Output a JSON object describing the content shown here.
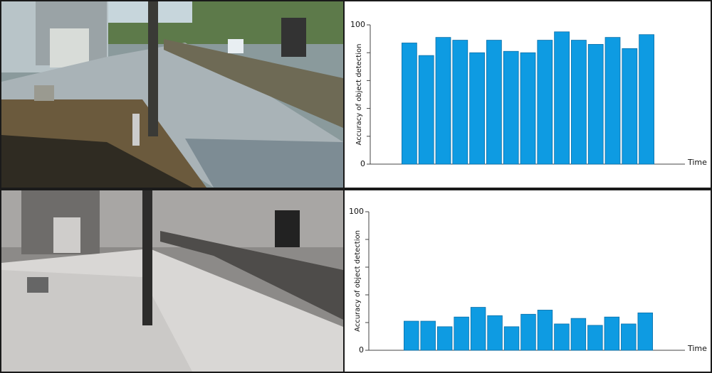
{
  "chart_data": [
    {
      "type": "bar",
      "y_label": "Accuracy of object detection",
      "x_label": "Time",
      "values": [
        87,
        78,
        91,
        89,
        80,
        89,
        81,
        80,
        89,
        95,
        89,
        86,
        91,
        83,
        93
      ],
      "color": "#0e9be2",
      "ylim": [
        0,
        100
      ],
      "yticks": [
        0,
        100
      ],
      "yminor_ticks": [
        20,
        40,
        60,
        80
      ]
    },
    {
      "type": "bar",
      "y_label": "Accuracy of object detection",
      "x_label": "Time",
      "values": [
        21,
        21,
        17,
        24,
        31,
        25,
        17,
        26,
        29,
        19,
        23,
        18,
        24,
        19,
        27
      ],
      "color": "#0e9be2",
      "ylim": [
        0,
        100
      ],
      "yticks": [
        0,
        100
      ],
      "yminor_ticks": [
        20,
        40,
        60,
        80
      ]
    }
  ]
}
